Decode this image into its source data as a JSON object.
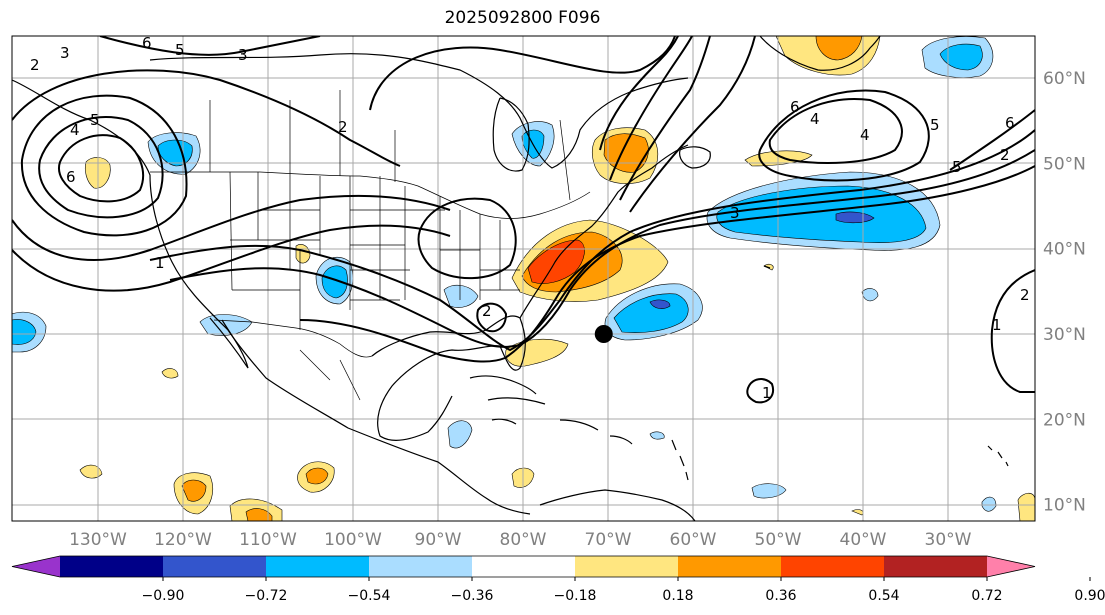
{
  "title": "2025092800 F096",
  "lon_labels": [
    {
      "value": -130,
      "text": "130°W"
    },
    {
      "value": -120,
      "text": "120°W"
    },
    {
      "value": -110,
      "text": "110°W"
    },
    {
      "value": -100,
      "text": "100°W"
    },
    {
      "value": -90,
      "text": "90°W"
    },
    {
      "value": -80,
      "text": "80°W"
    },
    {
      "value": -70,
      "text": "70°W"
    },
    {
      "value": -60,
      "text": "60°W"
    },
    {
      "value": -50,
      "text": "50°W"
    },
    {
      "value": -40,
      "text": "40°W"
    },
    {
      "value": -30,
      "text": "30°W"
    }
  ],
  "lat_labels": [
    {
      "value": 60,
      "text": "60°N"
    },
    {
      "value": 50,
      "text": "50°N"
    },
    {
      "value": 40,
      "text": "40°N"
    },
    {
      "value": 30,
      "text": "30°N"
    },
    {
      "value": 20,
      "text": "20°N"
    },
    {
      "value": 10,
      "text": "10°N"
    }
  ],
  "colorbar": {
    "colors": [
      "#9933cc",
      "#000088",
      "#3355cc",
      "#00bbff",
      "#aaddff",
      "#ffffff",
      "#ffe680",
      "#ff9900",
      "#ff4400",
      "#b22222",
      "#ff80aa"
    ],
    "labels": [
      "−0.90",
      "−0.72",
      "−0.54",
      "−0.36",
      "−0.18",
      "0.18",
      "0.36",
      "0.54",
      "0.72",
      "0.90"
    ]
  },
  "contour_labels": [
    "2",
    "3",
    "6",
    "5",
    "3",
    "4",
    "5",
    "6",
    "5",
    "1",
    "6",
    "4",
    "2",
    "6",
    "5",
    "4",
    "2",
    "3",
    "1",
    "2",
    "1",
    "2"
  ],
  "marker": {
    "lon": -70.5,
    "lat": 30.0
  }
}
